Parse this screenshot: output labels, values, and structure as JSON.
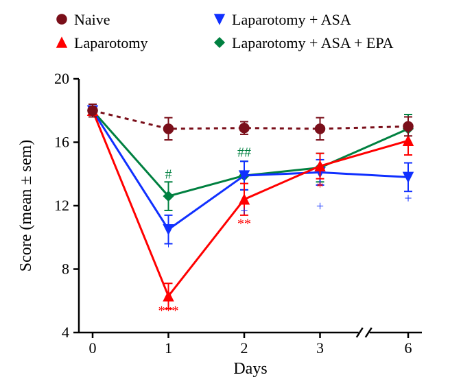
{
  "chart": {
    "type": "line",
    "background_color": "#ffffff",
    "axis_color": "#000000",
    "axis_width": 2.5,
    "tick_length": 8,
    "xlabel": "Days",
    "ylabel": "Score (mean ± sem)",
    "label_fontsize": 24,
    "tick_fontsize": 22,
    "x_categories": [
      "0",
      "1",
      "2",
      "3",
      "6"
    ],
    "x_broken_axis_between": [
      3,
      4
    ],
    "ylim": [
      4,
      20
    ],
    "ytick_step": 4,
    "yticks": [
      4,
      8,
      12,
      16,
      20
    ],
    "errorbar_cap": 6,
    "marker_size": 7,
    "legend": {
      "items": [
        {
          "key": "naive",
          "label": "Naive",
          "color": "#7a0f1a",
          "marker": "circle",
          "dash": "6,6"
        },
        {
          "key": "lap",
          "label": "Laparotomy",
          "color": "#ff0000",
          "marker": "tri-up",
          "dash": ""
        },
        {
          "key": "asa",
          "label": "Laparotomy + ASA",
          "color": "#1030ff",
          "marker": "tri-down",
          "dash": ""
        },
        {
          "key": "asaepa",
          "label": "Laparotomy + ASA + EPA",
          "color": "#008040",
          "marker": "diamond",
          "dash": ""
        }
      ],
      "fontsize": 22
    },
    "series": {
      "naive": {
        "y": [
          18.0,
          16.85,
          16.9,
          16.85,
          17.0
        ],
        "err": [
          0.4,
          0.7,
          0.4,
          0.7,
          0.6
        ]
      },
      "lap": {
        "y": [
          18.0,
          6.3,
          12.4,
          14.5,
          16.1
        ],
        "err": [
          0.4,
          0.8,
          1.0,
          0.8,
          0.9
        ]
      },
      "asa": {
        "y": [
          18.0,
          10.5,
          13.9,
          14.1,
          13.8
        ],
        "err": [
          0.4,
          0.9,
          0.9,
          0.8,
          0.9
        ]
      },
      "asaepa": {
        "y": [
          18.0,
          12.6,
          13.9,
          14.4,
          16.85
        ],
        "err": [
          0.4,
          0.9,
          0.9,
          0.9,
          0.9
        ]
      }
    },
    "annotations": [
      {
        "text": "#",
        "x_index": 1,
        "y": 13.7,
        "color": "#008040"
      },
      {
        "text": "+",
        "x_index": 1,
        "y": 9.3,
        "color": "#1030ff"
      },
      {
        "text": "***",
        "x_index": 1,
        "y": 5.1,
        "color": "#ff0000"
      },
      {
        "text": "##",
        "x_index": 2,
        "y": 15.1,
        "color": "#008040"
      },
      {
        "text": "+",
        "x_index": 2,
        "y": 11.4,
        "color": "#1030ff"
      },
      {
        "text": "**",
        "x_index": 2,
        "y": 10.6,
        "color": "#ff0000"
      },
      {
        "text": "*",
        "x_index": 3,
        "y": 12.9,
        "color": "#ff0000"
      },
      {
        "text": "+",
        "x_index": 3,
        "y": 11.7,
        "color": "#1030ff"
      },
      {
        "text": "+",
        "x_index": 4,
        "y": 12.2,
        "color": "#1030ff"
      }
    ]
  }
}
